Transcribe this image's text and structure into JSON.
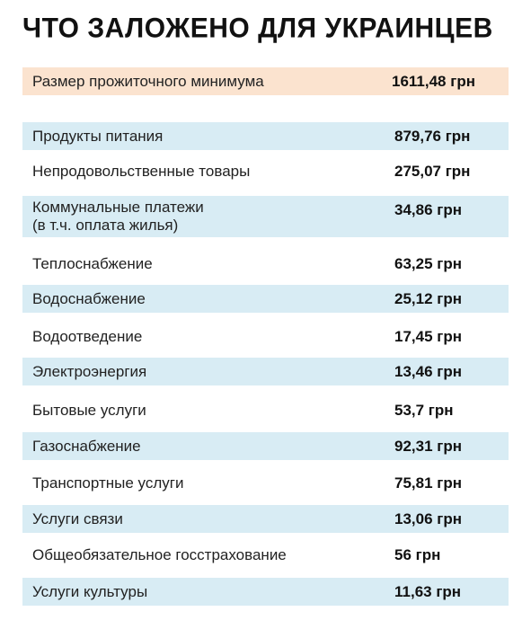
{
  "title": "ЧТО ЗАЛОЖЕНО ДЛЯ УКРАИНЦЕВ",
  "summary": {
    "label": "Размер прожиточного минимума",
    "value": "1611,48 грн"
  },
  "rows": [
    {
      "label": "Продукты питания",
      "value": "879,76 грн"
    },
    {
      "label": "Непродовольственные товары",
      "value": "275,07 грн"
    },
    {
      "label_line1": "Коммунальные платежи",
      "label_line2": "(в т.ч. оплата жилья)",
      "value": "34,86 грн"
    },
    {
      "label": "Теплоснабжение",
      "value": "63,25 грн"
    },
    {
      "label": "Водоснабжение",
      "value": "25,12 грн"
    },
    {
      "label": "Водоотведение",
      "value": "17,45 грн"
    },
    {
      "label": "Электроэнергия",
      "value": "13,46 грн"
    },
    {
      "label": "Бытовые услуги",
      "value": "53,7 грн"
    },
    {
      "label": "Газоснабжение",
      "value": "92,31 грн"
    },
    {
      "label": "Транспортные услуги",
      "value": "75,81 грн"
    },
    {
      "label": "Услуги связи",
      "value": "13,06 грн"
    },
    {
      "label": "Общеобязательное госстрахование",
      "value": "56 грн"
    },
    {
      "label": "Услуги культуры",
      "value": "11,63 грн"
    }
  ],
  "colors": {
    "highlight": "#fbe3cf",
    "row_blue": "#d8ecf4"
  }
}
